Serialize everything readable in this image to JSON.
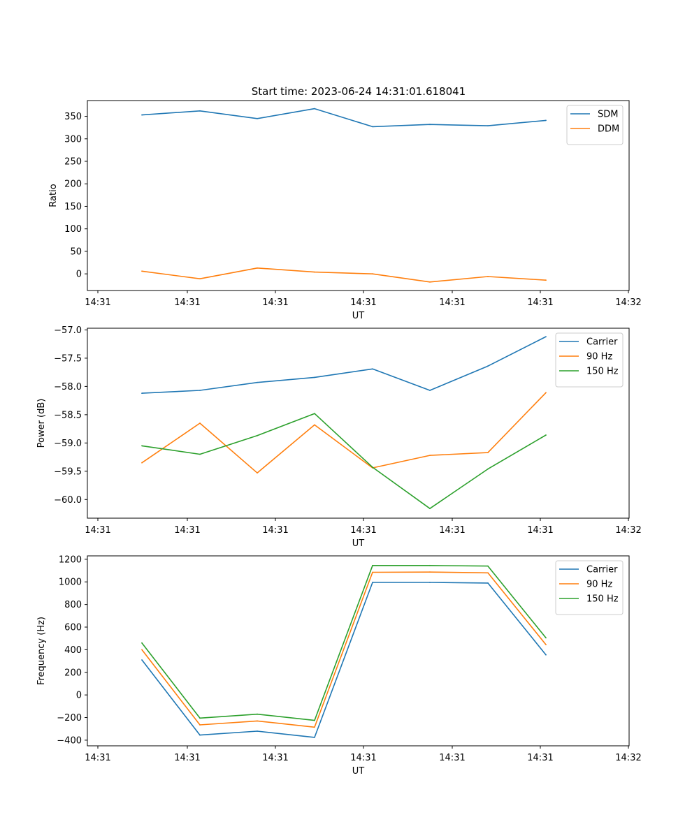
{
  "figure": {
    "title": "Start time: 2023-06-24 14:31:01.618041"
  },
  "colors": {
    "c0": "#1f77b4",
    "c1": "#ff7f0e",
    "c2": "#2ca02c"
  },
  "chart_data": [
    {
      "type": "line",
      "title": "Start time: 2023-06-24 14:31:01.618041",
      "xlabel": "UT",
      "ylabel": "Ratio",
      "xticks": [
        "14:31",
        "14:31",
        "14:31",
        "14:31",
        "14:31",
        "14:31",
        "14:32"
      ],
      "yticks": [
        0,
        50,
        100,
        150,
        200,
        250,
        300,
        350
      ],
      "ylim": [
        -37,
        385
      ],
      "grid": false,
      "legend": "top-right",
      "series": [
        {
          "name": "SDM",
          "color": "c0",
          "values": [
            353,
            362,
            345,
            367,
            327,
            332,
            329,
            341
          ]
        },
        {
          "name": "DDM",
          "color": "c1",
          "values": [
            6,
            -11,
            13,
            4,
            0,
            -18,
            -6,
            -14
          ]
        }
      ]
    },
    {
      "type": "line",
      "xlabel": "UT",
      "ylabel": "Power (dB)",
      "xticks": [
        "14:31",
        "14:31",
        "14:31",
        "14:31",
        "14:31",
        "14:31",
        "14:32"
      ],
      "yticks": [
        -60.0,
        -59.5,
        -59.0,
        -58.5,
        -58.0,
        -57.5,
        -57.0
      ],
      "ylim": [
        -60.33,
        -56.97
      ],
      "grid": false,
      "legend": "top-right",
      "series": [
        {
          "name": "Carrier",
          "color": "c0",
          "values": [
            -58.12,
            -58.07,
            -57.93,
            -57.84,
            -57.69,
            -58.07,
            -57.64,
            -57.12
          ]
        },
        {
          "name": "90 Hz",
          "color": "c1",
          "values": [
            -59.35,
            -58.65,
            -59.53,
            -58.68,
            -59.44,
            -59.22,
            -59.17,
            -58.11
          ]
        },
        {
          "name": "150 Hz",
          "color": "c2",
          "values": [
            -59.05,
            -59.2,
            -58.87,
            -58.48,
            -59.43,
            -60.16,
            -59.46,
            -58.86
          ]
        }
      ]
    },
    {
      "type": "line",
      "xlabel": "UT",
      "ylabel": "Frequency (Hz)",
      "xticks": [
        "14:31",
        "14:31",
        "14:31",
        "14:31",
        "14:31",
        "14:31",
        "14:32"
      ],
      "yticks": [
        -400,
        -200,
        0,
        200,
        400,
        600,
        800,
        1000,
        1200
      ],
      "ylim": [
        -450,
        1230
      ],
      "grid": false,
      "legend": "top-right",
      "series": [
        {
          "name": "Carrier",
          "color": "c0",
          "values": [
            310,
            -355,
            -320,
            -375,
            995,
            995,
            990,
            355
          ]
        },
        {
          "name": "90 Hz",
          "color": "c1",
          "values": [
            400,
            -265,
            -230,
            -285,
            1085,
            1087,
            1080,
            445
          ]
        },
        {
          "name": "150 Hz",
          "color": "c2",
          "values": [
            460,
            -205,
            -170,
            -225,
            1145,
            1145,
            1140,
            505
          ]
        }
      ]
    }
  ]
}
